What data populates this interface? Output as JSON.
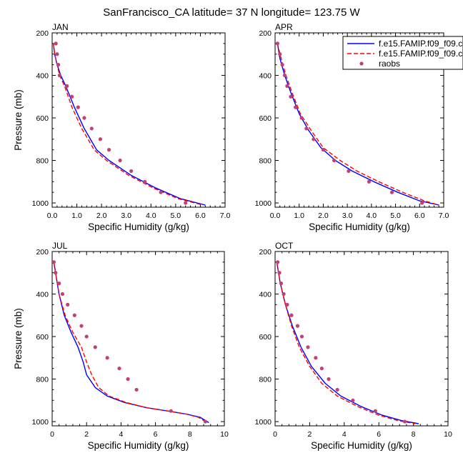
{
  "figure_title": "SanFrancisco_CA  latitude= 37 N longitude= 123.75 W",
  "legend": {
    "entries": [
      {
        "label": "f.e15.FAMIP.f09_f09.c",
        "color": "#0000ff",
        "style": "solid"
      },
      {
        "label": "f.e15.FAMIP.f09_f09.c",
        "color": "#ff0000",
        "style": "dashed"
      },
      {
        "label": "raobs",
        "color": "#c0407a",
        "style": "marker"
      }
    ]
  },
  "chart_data": [
    {
      "type": "line",
      "panel": "JAN",
      "xlabel": "Specific Humidity (g/kg)",
      "ylabel": "Pressure (mb)",
      "xlim": [
        0,
        7
      ],
      "ylim": [
        1020,
        200
      ],
      "xticks": [
        "0.0",
        "1.0",
        "2.0",
        "3.0",
        "4.0",
        "5.0",
        "6.0",
        "7.0"
      ],
      "yticks": [
        "200",
        "400",
        "600",
        "800",
        "1000"
      ],
      "grid": false,
      "series": [
        {
          "color": "#0000ff",
          "style": "solid",
          "x": [
            0.05,
            0.1,
            0.2,
            0.35,
            0.55,
            0.9,
            1.3,
            1.8,
            2.3,
            3.2,
            4.2,
            5.2,
            6.2
          ],
          "y": [
            250,
            300,
            350,
            400,
            450,
            550,
            650,
            750,
            800,
            870,
            930,
            980,
            1010
          ]
        },
        {
          "color": "#ff0000",
          "style": "dashed",
          "x": [
            0.05,
            0.1,
            0.2,
            0.3,
            0.5,
            0.8,
            1.2,
            1.7,
            2.2,
            3.1,
            4.1,
            5.1,
            6.1
          ],
          "y": [
            250,
            300,
            350,
            400,
            450,
            550,
            650,
            750,
            800,
            870,
            930,
            980,
            1010
          ]
        },
        {
          "color": "#c0407a",
          "style": "marker",
          "x": [
            0.15,
            0.2,
            0.25,
            0.3,
            0.6,
            0.8,
            1.05,
            1.3,
            1.6,
            1.95,
            2.3,
            2.75,
            3.2,
            3.75,
            4.4,
            5.4
          ],
          "y": [
            250,
            300,
            350,
            400,
            450,
            500,
            550,
            600,
            650,
            700,
            750,
            800,
            850,
            900,
            950,
            1000
          ]
        }
      ]
    },
    {
      "type": "line",
      "panel": "APR",
      "xlabel": "Specific Humidity (g/kg)",
      "ylabel": "",
      "xlim": [
        0,
        7
      ],
      "ylim": [
        1020,
        200
      ],
      "xticks": [
        "0.0",
        "1.0",
        "2.0",
        "3.0",
        "4.0",
        "5.0",
        "6.0",
        "7.0"
      ],
      "yticks": [
        "200",
        "400",
        "600",
        "800",
        "1000"
      ],
      "grid": false,
      "series": [
        {
          "color": "#0000ff",
          "style": "solid",
          "x": [
            0.1,
            0.2,
            0.4,
            0.65,
            1.0,
            1.4,
            1.9,
            2.5,
            3.2,
            4.1,
            5.1,
            6.0,
            6.8
          ],
          "y": [
            250,
            320,
            400,
            480,
            580,
            660,
            740,
            800,
            850,
            900,
            950,
            990,
            1010
          ]
        },
        {
          "color": "#ff0000",
          "style": "dashed",
          "x": [
            0.1,
            0.25,
            0.45,
            0.7,
            1.05,
            1.5,
            2.0,
            2.7,
            3.4,
            4.3,
            5.3,
            6.2,
            6.8
          ],
          "y": [
            250,
            320,
            400,
            480,
            580,
            660,
            740,
            800,
            850,
            900,
            950,
            990,
            1010
          ]
        },
        {
          "color": "#c0407a",
          "style": "marker",
          "x": [
            0.1,
            0.2,
            0.3,
            0.4,
            0.5,
            0.65,
            0.85,
            1.1,
            1.3,
            1.6,
            2.0,
            2.45,
            3.05,
            3.9,
            4.85,
            6.1
          ],
          "y": [
            250,
            300,
            350,
            400,
            450,
            500,
            550,
            600,
            650,
            700,
            750,
            800,
            850,
            900,
            950,
            1000
          ]
        }
      ]
    },
    {
      "type": "line",
      "panel": "JUL",
      "xlabel": "Specific Humidity (g/kg)",
      "ylabel": "Pressure (mb)",
      "xlim": [
        0,
        10
      ],
      "ylim": [
        1020,
        200
      ],
      "xticks": [
        "0",
        "2",
        "4",
        "6",
        "8",
        "10"
      ],
      "yticks": [
        "200",
        "400",
        "600",
        "800",
        "1000"
      ],
      "grid": false,
      "series": [
        {
          "color": "#0000ff",
          "style": "solid",
          "x": [
            0.1,
            0.2,
            0.4,
            0.7,
            1.1,
            1.5,
            1.8,
            2.0,
            2.5,
            3.2,
            4.2,
            5.5,
            6.7,
            7.8,
            8.6,
            9.1
          ],
          "y": [
            250,
            300,
            400,
            500,
            580,
            650,
            720,
            780,
            840,
            880,
            910,
            935,
            950,
            965,
            980,
            1005
          ]
        },
        {
          "color": "#ff0000",
          "style": "dashed",
          "x": [
            0.1,
            0.2,
            0.4,
            0.75,
            1.2,
            1.7,
            2.0,
            2.3,
            2.7,
            3.3,
            4.3,
            5.5,
            6.7,
            7.8,
            8.5,
            9.0
          ],
          "y": [
            250,
            300,
            400,
            500,
            580,
            650,
            720,
            780,
            840,
            880,
            910,
            935,
            950,
            965,
            980,
            1005
          ]
        },
        {
          "color": "#c0407a",
          "style": "marker",
          "x": [
            0.1,
            0.2,
            0.4,
            0.6,
            0.9,
            1.3,
            1.7,
            2.0,
            2.5,
            3.2,
            3.9,
            4.4,
            4.9,
            6.9,
            8.9
          ],
          "y": [
            250,
            300,
            350,
            400,
            450,
            500,
            550,
            600,
            650,
            700,
            750,
            800,
            850,
            950,
            1000
          ]
        }
      ]
    },
    {
      "type": "line",
      "panel": "OCT",
      "xlabel": "Specific Humidity (g/kg)",
      "ylabel": "",
      "xlim": [
        0,
        10
      ],
      "ylim": [
        1020,
        200
      ],
      "xticks": [
        "0",
        "2",
        "4",
        "6",
        "8",
        "10"
      ],
      "yticks": [
        "200",
        "400",
        "600",
        "800",
        "1000"
      ],
      "grid": false,
      "series": [
        {
          "color": "#0000ff",
          "style": "solid",
          "x": [
            0.1,
            0.3,
            0.6,
            1.0,
            1.5,
            2.1,
            2.9,
            3.8,
            5.0,
            6.2,
            7.3,
            8.3
          ],
          "y": [
            250,
            350,
            450,
            550,
            650,
            740,
            820,
            880,
            930,
            970,
            995,
            1010
          ]
        },
        {
          "color": "#ff0000",
          "style": "dashed",
          "x": [
            0.1,
            0.3,
            0.6,
            0.95,
            1.4,
            2.0,
            2.7,
            3.6,
            4.8,
            6.0,
            7.1,
            8.1
          ],
          "y": [
            250,
            350,
            450,
            550,
            650,
            740,
            820,
            880,
            930,
            970,
            995,
            1010
          ]
        },
        {
          "color": "#c0407a",
          "style": "marker",
          "x": [
            0.15,
            0.25,
            0.35,
            0.5,
            0.7,
            0.95,
            1.3,
            1.55,
            1.9,
            2.35,
            2.7,
            3.1,
            3.6,
            4.5,
            5.8,
            7.5
          ],
          "y": [
            250,
            300,
            350,
            400,
            450,
            500,
            550,
            600,
            650,
            700,
            750,
            800,
            850,
            900,
            950,
            1000
          ]
        }
      ]
    }
  ]
}
